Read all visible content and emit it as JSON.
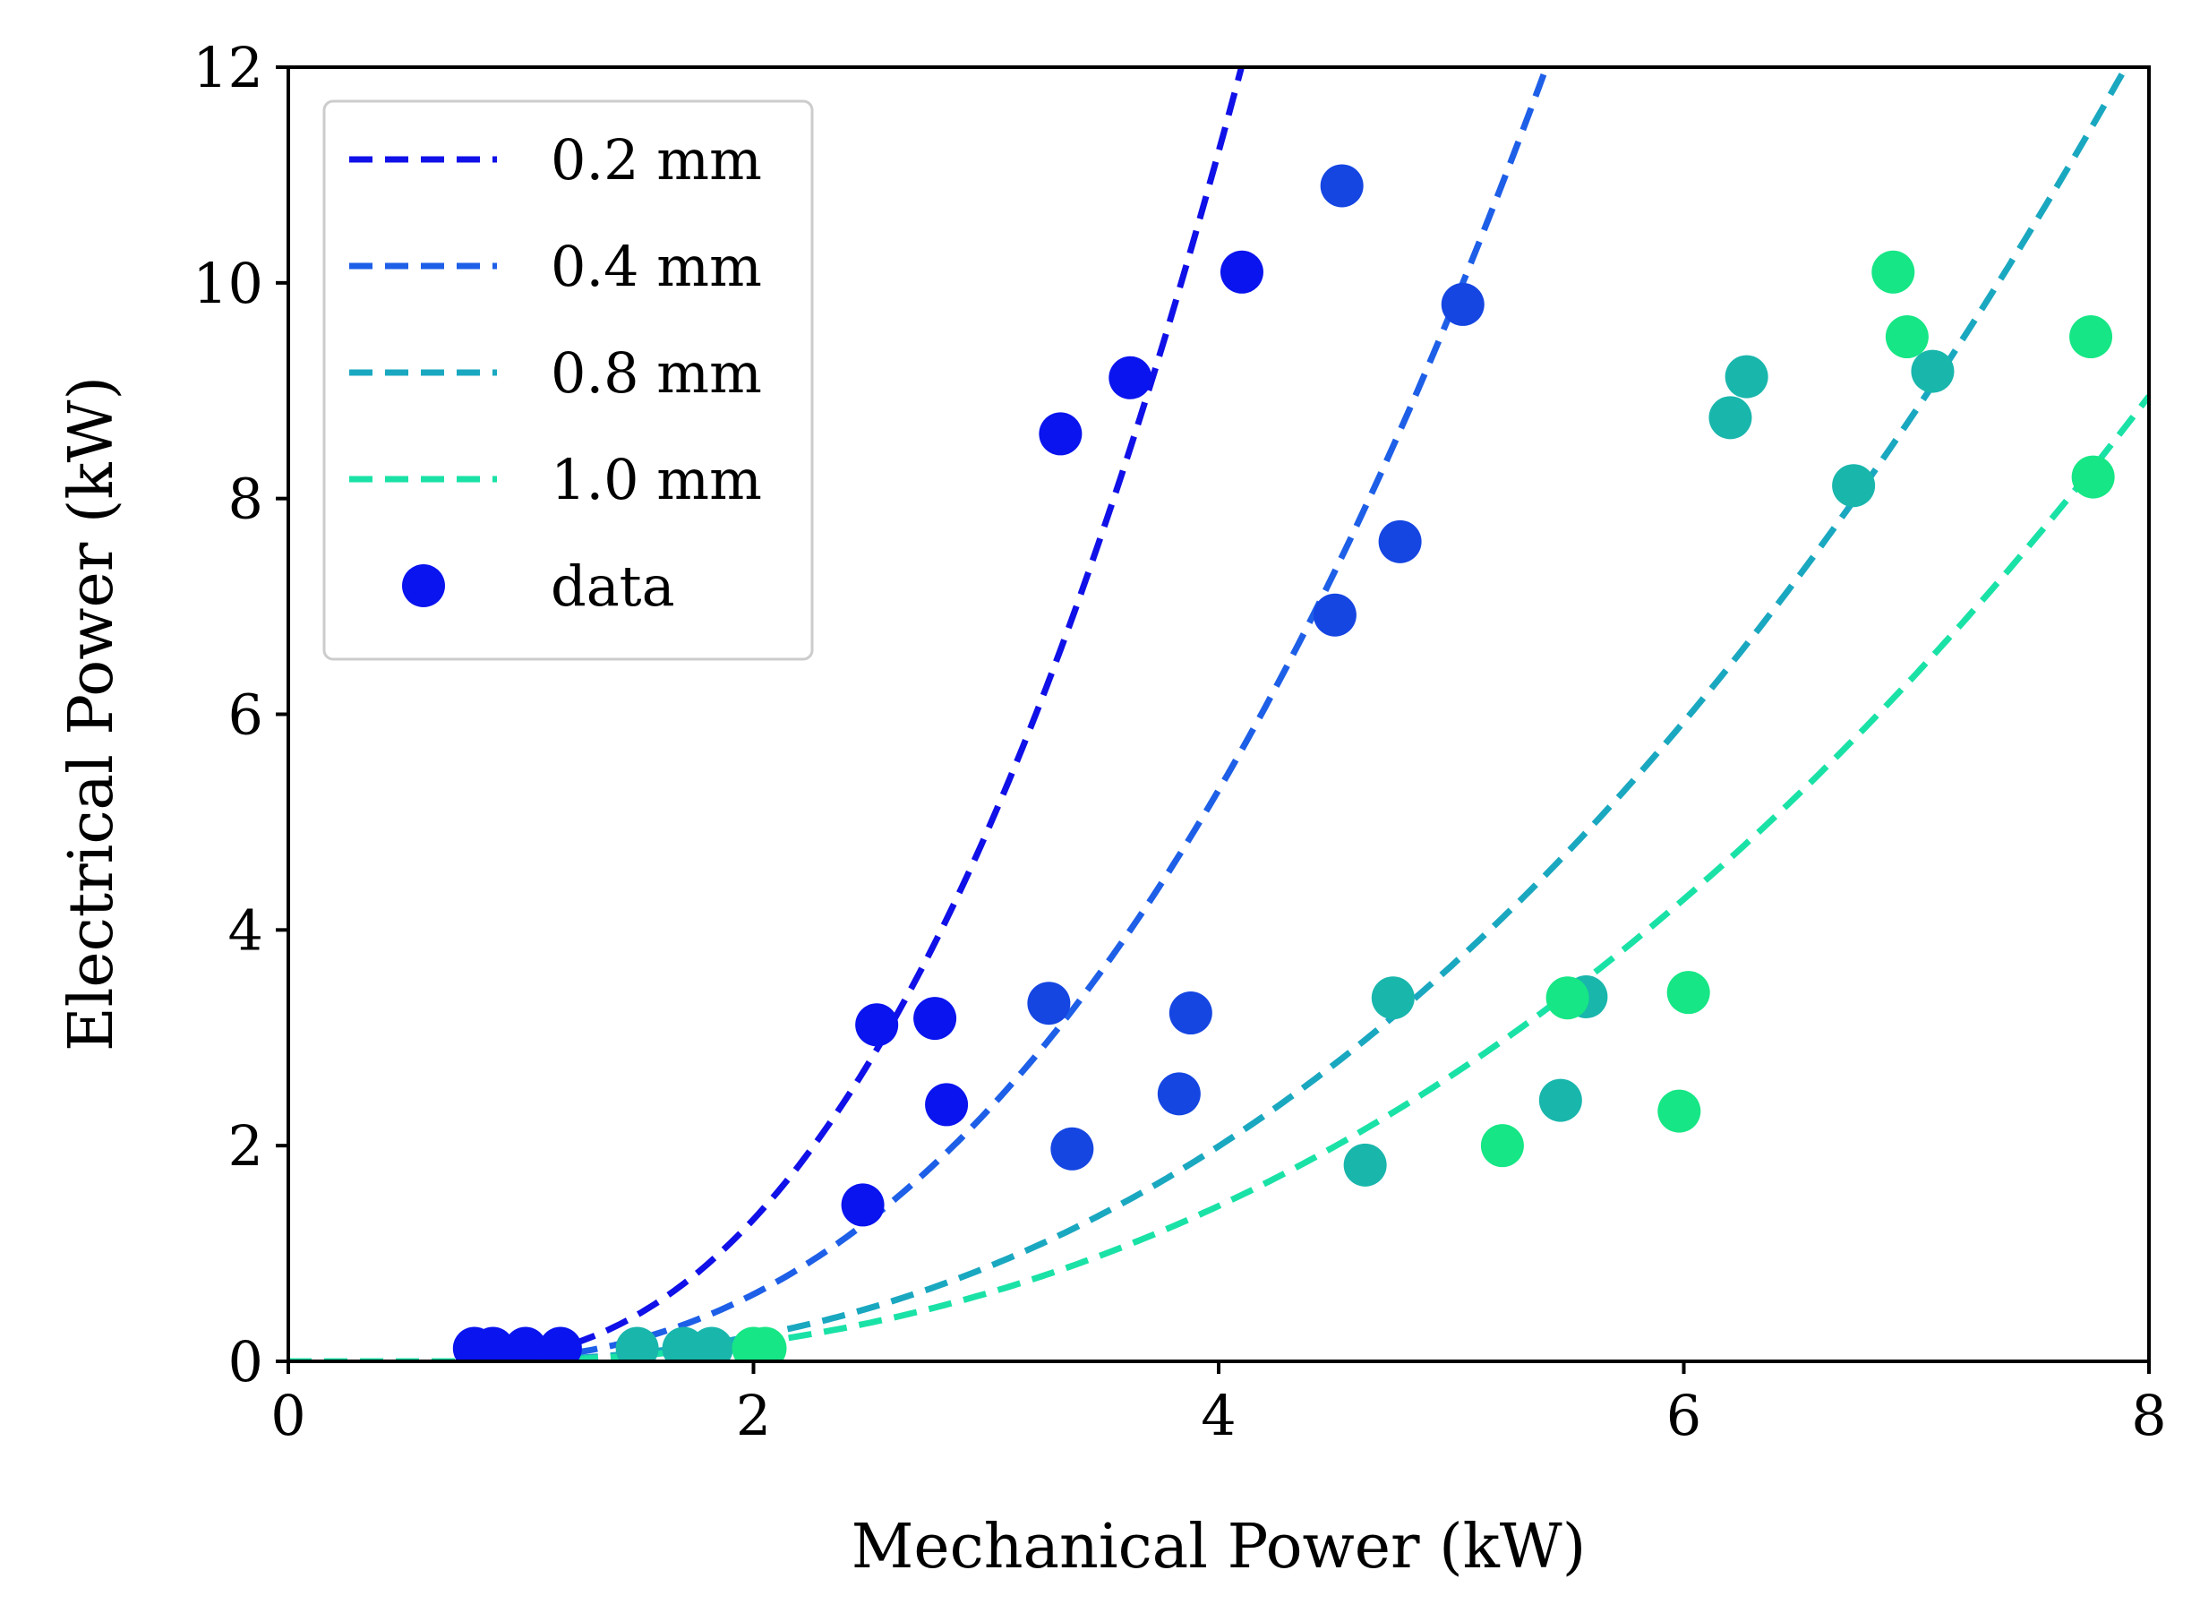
{
  "chart_data": {
    "type": "scatter",
    "xlabel": "Mechanical Power (kW)",
    "ylabel": "Electrical Power (kW)",
    "xlim": [
      0,
      8
    ],
    "ylim": [
      0,
      12
    ],
    "xticks": [
      "0",
      "2",
      "4",
      "6",
      "8"
    ],
    "yticks": [
      "0",
      "2",
      "4",
      "6",
      "8",
      "10",
      "12"
    ],
    "grid": false,
    "legend_position": "top-left",
    "fit_series": [
      {
        "name": "0.2 mm",
        "color": "#1010e8",
        "curve": "power",
        "x0": 0.7,
        "k": 0.72,
        "n": 2.3
      },
      {
        "name": "0.4 mm",
        "color": "#1e5fe8",
        "curve": "power",
        "x0": 0.7,
        "k": 0.34,
        "n": 2.3
      },
      {
        "name": "0.8 mm",
        "color": "#1aa8c0",
        "curve": "power",
        "x0": 0.7,
        "k": 0.128,
        "n": 2.3
      },
      {
        "name": "1.0 mm",
        "color": "#1ae2a6",
        "curve": "power",
        "x0": 0.7,
        "k": 0.0925,
        "n": 2.3
      }
    ],
    "data_legend_label": "data",
    "data_legend_color": "#0a14ee",
    "data_points": [
      {
        "x": 0.8,
        "y": 0.12,
        "color": "#0a14ee"
      },
      {
        "x": 0.88,
        "y": 0.12,
        "color": "#0a14ee"
      },
      {
        "x": 1.02,
        "y": 0.12,
        "color": "#0a14ee"
      },
      {
        "x": 1.17,
        "y": 0.12,
        "color": "#0a14ee"
      },
      {
        "x": 2.47,
        "y": 1.45,
        "color": "#0a14ee"
      },
      {
        "x": 2.53,
        "y": 3.12,
        "color": "#0a14ee"
      },
      {
        "x": 2.78,
        "y": 3.18,
        "color": "#0a14ee"
      },
      {
        "x": 2.83,
        "y": 2.38,
        "color": "#0a14ee"
      },
      {
        "x": 3.32,
        "y": 8.6,
        "color": "#0a14ee"
      },
      {
        "x": 3.62,
        "y": 9.12,
        "color": "#0a14ee"
      },
      {
        "x": 4.1,
        "y": 10.1,
        "color": "#0a14ee"
      },
      {
        "x": 3.27,
        "y": 3.32,
        "color": "#1546e2"
      },
      {
        "x": 3.37,
        "y": 1.97,
        "color": "#1546e2"
      },
      {
        "x": 3.83,
        "y": 2.48,
        "color": "#1546e2"
      },
      {
        "x": 3.88,
        "y": 3.23,
        "color": "#1546e2"
      },
      {
        "x": 4.5,
        "y": 6.92,
        "color": "#1546e2"
      },
      {
        "x": 4.78,
        "y": 7.6,
        "color": "#1546e2"
      },
      {
        "x": 4.53,
        "y": 10.9,
        "color": "#1546e2"
      },
      {
        "x": 5.05,
        "y": 9.8,
        "color": "#1546e2"
      },
      {
        "x": 1.5,
        "y": 0.12,
        "color": "#19b6ac"
      },
      {
        "x": 1.7,
        "y": 0.12,
        "color": "#19b6ac"
      },
      {
        "x": 1.82,
        "y": 0.12,
        "color": "#19b6ac"
      },
      {
        "x": 4.63,
        "y": 1.82,
        "color": "#19b6ac"
      },
      {
        "x": 4.75,
        "y": 3.37,
        "color": "#19b6ac"
      },
      {
        "x": 5.47,
        "y": 2.42,
        "color": "#19b6ac"
      },
      {
        "x": 5.58,
        "y": 3.38,
        "color": "#19b6ac"
      },
      {
        "x": 6.2,
        "y": 8.75,
        "color": "#19b6ac"
      },
      {
        "x": 6.27,
        "y": 9.13,
        "color": "#19b6ac"
      },
      {
        "x": 6.73,
        "y": 8.12,
        "color": "#19b6ac"
      },
      {
        "x": 7.07,
        "y": 9.18,
        "color": "#19b6ac"
      },
      {
        "x": 2.0,
        "y": 0.12,
        "color": "#16e685"
      },
      {
        "x": 2.05,
        "y": 0.12,
        "color": "#16e685"
      },
      {
        "x": 5.22,
        "y": 2.0,
        "color": "#16e685"
      },
      {
        "x": 5.5,
        "y": 3.37,
        "color": "#16e685"
      },
      {
        "x": 5.98,
        "y": 2.32,
        "color": "#16e685"
      },
      {
        "x": 6.02,
        "y": 3.42,
        "color": "#16e685"
      },
      {
        "x": 6.9,
        "y": 10.1,
        "color": "#16e685"
      },
      {
        "x": 6.96,
        "y": 9.5,
        "color": "#16e685"
      },
      {
        "x": 7.75,
        "y": 9.5,
        "color": "#16e685"
      },
      {
        "x": 7.76,
        "y": 8.2,
        "color": "#16e685"
      }
    ]
  }
}
